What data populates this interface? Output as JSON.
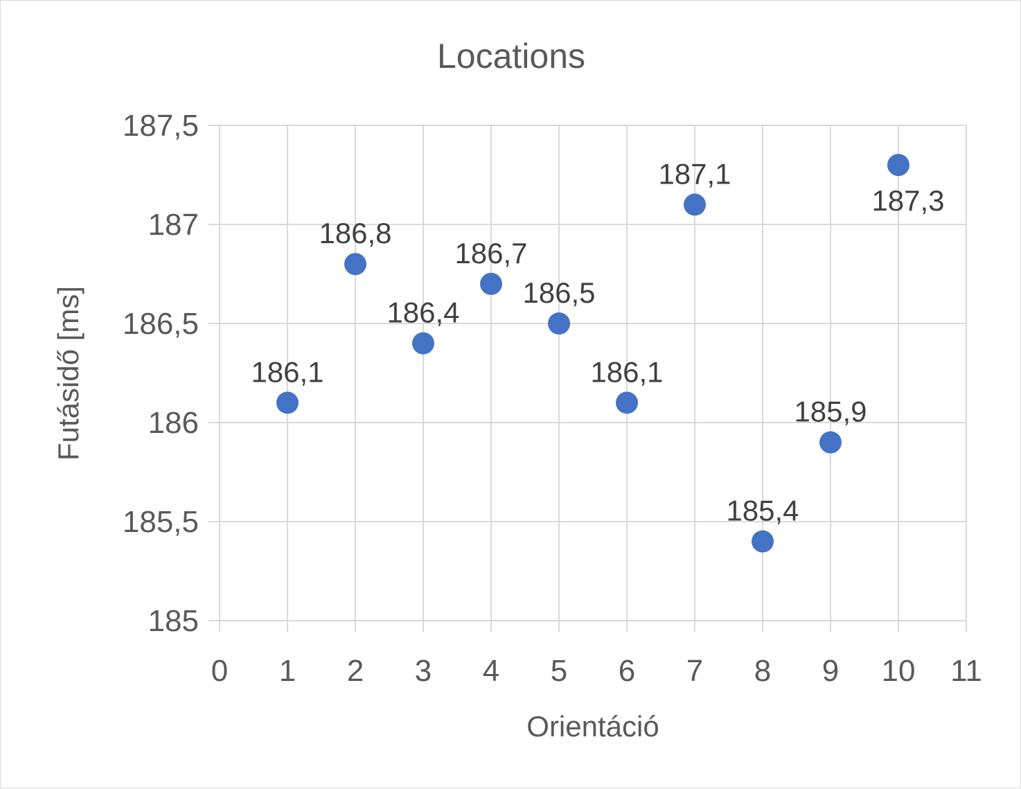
{
  "chart_data": {
    "type": "scatter",
    "title": "Locations",
    "xlabel": "Orientáció",
    "ylabel": "Futásidő [ms]",
    "xlim": [
      0,
      11
    ],
    "ylim": [
      185,
      187.5
    ],
    "x_ticks": [
      "0",
      "1",
      "2",
      "3",
      "4",
      "5",
      "6",
      "7",
      "8",
      "9",
      "10",
      "11"
    ],
    "y_ticks": [
      "185",
      "185,5",
      "186",
      "186,5",
      "187",
      "187,5"
    ],
    "grid": true,
    "legend": "none",
    "marker_color": "#4472c4",
    "series": [
      {
        "x": [
          1,
          2,
          3,
          4,
          5,
          6,
          7,
          8,
          9,
          10
        ],
        "y": [
          186.1,
          186.8,
          186.4,
          186.7,
          186.5,
          186.1,
          187.1,
          185.4,
          185.9,
          187.3
        ],
        "labels": [
          "186,1",
          "186,8",
          "186,4",
          "186,7",
          "186,5",
          "186,1",
          "187,1",
          "185,4",
          "185,9",
          "187,3"
        ],
        "label_position": [
          "above",
          "above",
          "above",
          "above",
          "above",
          "above",
          "above",
          "above",
          "above",
          "below"
        ]
      }
    ]
  }
}
